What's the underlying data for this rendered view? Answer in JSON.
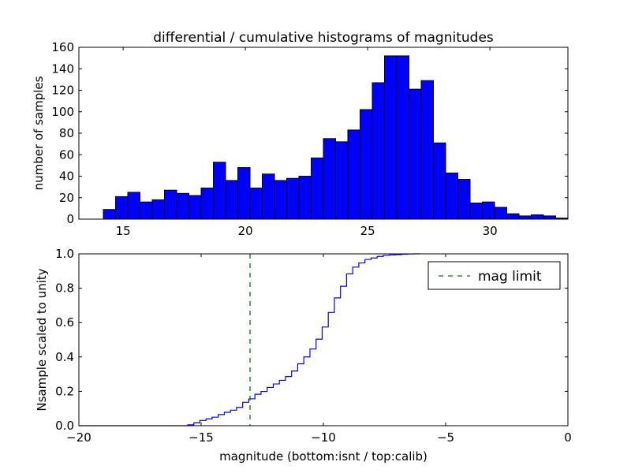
{
  "chart_data": [
    {
      "type": "bar",
      "title": "differential / cumulative histograms of magnitudes",
      "xlabel": "",
      "ylabel": "number of samples",
      "bin_start": 14.19,
      "bin_width": 0.5,
      "values": [
        9,
        21,
        25,
        16,
        18,
        27,
        24,
        22,
        29,
        53,
        36,
        48,
        29,
        42,
        36,
        38,
        40,
        57,
        75,
        72,
        83,
        102,
        127,
        152,
        152,
        121,
        129,
        71,
        43,
        37,
        15,
        16,
        11,
        5,
        3,
        4,
        3,
        1
      ],
      "xlim": [
        13.19,
        33.19
      ],
      "ylim": [
        0,
        160
      ],
      "xticks": [
        "15",
        "20",
        "25",
        "30"
      ],
      "xtick_values": [
        15,
        20,
        25,
        30
      ],
      "yticks": [
        "0",
        "20",
        "40",
        "60",
        "80",
        "100",
        "120",
        "140",
        "160"
      ],
      "ytick_values": [
        0,
        20,
        40,
        60,
        80,
        100,
        120,
        140,
        160
      ],
      "color": "#0000ff"
    },
    {
      "type": "line",
      "step": true,
      "xlabel": "magnitude (bottom:isnt / top:calib)",
      "ylabel": "Nsample scaled to unity",
      "bin_start": -15.55,
      "bin_width": 0.25,
      "cumulative_of": "same counts as top histogram, normalized",
      "xlim": [
        -20,
        0
      ],
      "ylim": [
        0,
        1
      ],
      "xticks": [
        "−20",
        "−15",
        "−10",
        "−5",
        "0"
      ],
      "xtick_values": [
        -20,
        -15,
        -10,
        -5,
        0
      ],
      "yticks": [
        "0.0",
        "0.2",
        "0.4",
        "0.6",
        "0.8",
        "1.0"
      ],
      "ytick_values": [
        0,
        0.2,
        0.4,
        0.6,
        0.8,
        1.0
      ],
      "mag_limit": -13,
      "legend": {
        "label": "mag limit",
        "placement": "top-right"
      },
      "line_color": "#0000ff",
      "limit_color": "#007f00"
    }
  ]
}
